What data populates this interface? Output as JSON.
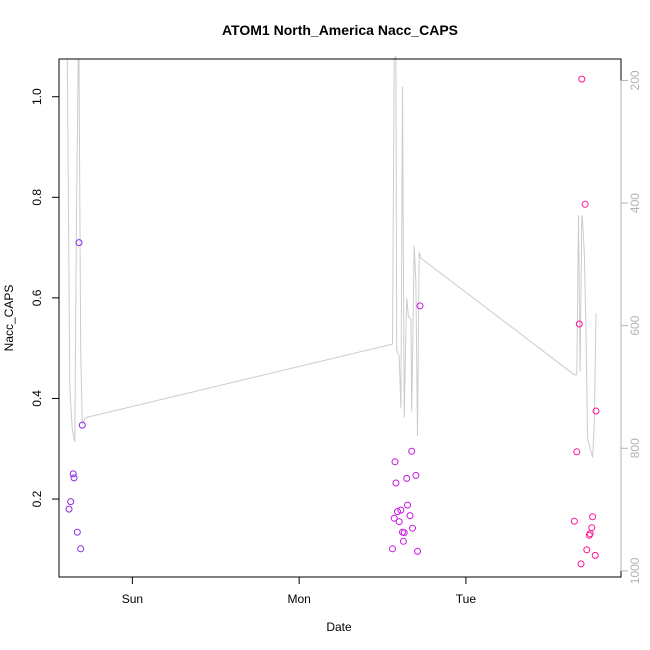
{
  "chart_data": {
    "type": "scatter",
    "title": "ATOM1 North_America Nacc_CAPS",
    "xlabel": "Date",
    "ylabel": "Nacc_CAPS",
    "x_ticks": [
      {
        "label": "Sun",
        "t": 1.0
      },
      {
        "label": "Mon",
        "t": 2.0
      },
      {
        "label": "Tue",
        "t": 3.0
      }
    ],
    "xlim": [
      0.56,
      3.93
    ],
    "ylim": [
      0.045,
      1.075
    ],
    "y_ticks": [
      0.2,
      0.4,
      0.6,
      0.8,
      1.0
    ],
    "y2_ticks": [
      200,
      400,
      600,
      800,
      1000
    ],
    "y2lim": [
      1010,
      165
    ],
    "y2_reversed": true,
    "point_colors": {
      "early": "#8a2be2",
      "mid": "#c71ae0",
      "late": "#ff1493"
    },
    "line_color": "#cccccc",
    "points": [
      {
        "t": 0.62,
        "y": 0.18
      },
      {
        "t": 0.63,
        "y": 0.195
      },
      {
        "t": 0.645,
        "y": 0.25
      },
      {
        "t": 0.65,
        "y": 0.242
      },
      {
        "t": 0.67,
        "y": 0.134
      },
      {
        "t": 0.68,
        "y": 0.71
      },
      {
        "t": 0.69,
        "y": 0.101
      },
      {
        "t": 0.7,
        "y": 0.347
      },
      {
        "t": 2.56,
        "y": 0.101
      },
      {
        "t": 2.57,
        "y": 0.162
      },
      {
        "t": 2.575,
        "y": 0.274
      },
      {
        "t": 2.58,
        "y": 0.232
      },
      {
        "t": 2.59,
        "y": 0.175
      },
      {
        "t": 2.6,
        "y": 0.155
      },
      {
        "t": 2.61,
        "y": 0.178
      },
      {
        "t": 2.62,
        "y": 0.134
      },
      {
        "t": 2.625,
        "y": 0.116
      },
      {
        "t": 2.63,
        "y": 0.133
      },
      {
        "t": 2.645,
        "y": 0.241
      },
      {
        "t": 2.65,
        "y": 0.188
      },
      {
        "t": 2.665,
        "y": 0.167
      },
      {
        "t": 2.675,
        "y": 0.295
      },
      {
        "t": 2.68,
        "y": 0.142
      },
      {
        "t": 2.7,
        "y": 0.247
      },
      {
        "t": 2.71,
        "y": 0.096
      },
      {
        "t": 2.725,
        "y": 0.584
      },
      {
        "t": 3.65,
        "y": 0.156
      },
      {
        "t": 3.665,
        "y": 0.294
      },
      {
        "t": 3.68,
        "y": 0.548
      },
      {
        "t": 3.69,
        "y": 0.071
      },
      {
        "t": 3.695,
        "y": 1.035
      },
      {
        "t": 3.715,
        "y": 0.786
      },
      {
        "t": 3.725,
        "y": 0.099
      },
      {
        "t": 3.74,
        "y": 0.128
      },
      {
        "t": 3.745,
        "y": 0.131
      },
      {
        "t": 3.755,
        "y": 0.143
      },
      {
        "t": 3.76,
        "y": 0.165
      },
      {
        "t": 3.775,
        "y": 0.088
      },
      {
        "t": 3.78,
        "y": 0.375
      }
    ],
    "secondary_line": [
      {
        "t": 0.6,
        "y": 165
      },
      {
        "t": 0.61,
        "y": 165
      },
      {
        "t": 0.625,
        "y": 700
      },
      {
        "t": 0.64,
        "y": 770
      },
      {
        "t": 0.655,
        "y": 790
      },
      {
        "t": 0.665,
        "y": 420
      },
      {
        "t": 0.675,
        "y": 165
      },
      {
        "t": 0.68,
        "y": 165
      },
      {
        "t": 0.69,
        "y": 640
      },
      {
        "t": 0.7,
        "y": 760
      },
      {
        "t": 0.72,
        "y": 750
      },
      {
        "t": 2.56,
        "y": 630
      },
      {
        "t": 2.57,
        "y": 165
      },
      {
        "t": 2.58,
        "y": 160
      },
      {
        "t": 2.585,
        "y": 640
      },
      {
        "t": 2.6,
        "y": 650
      },
      {
        "t": 2.61,
        "y": 735
      },
      {
        "t": 2.62,
        "y": 210
      },
      {
        "t": 2.63,
        "y": 750
      },
      {
        "t": 2.64,
        "y": 610
      },
      {
        "t": 2.645,
        "y": 555
      },
      {
        "t": 2.655,
        "y": 585
      },
      {
        "t": 2.67,
        "y": 590
      },
      {
        "t": 2.675,
        "y": 740
      },
      {
        "t": 2.69,
        "y": 470
      },
      {
        "t": 2.7,
        "y": 530
      },
      {
        "t": 2.71,
        "y": 780
      },
      {
        "t": 2.72,
        "y": 480
      },
      {
        "t": 2.73,
        "y": 490
      },
      {
        "t": 3.65,
        "y": 680
      },
      {
        "t": 3.665,
        "y": 680
      },
      {
        "t": 3.675,
        "y": 420
      },
      {
        "t": 3.685,
        "y": 675
      },
      {
        "t": 3.695,
        "y": 420
      },
      {
        "t": 3.7,
        "y": 430
      },
      {
        "t": 3.71,
        "y": 480
      },
      {
        "t": 3.72,
        "y": 610
      },
      {
        "t": 3.73,
        "y": 785
      },
      {
        "t": 3.745,
        "y": 800
      },
      {
        "t": 3.76,
        "y": 815
      },
      {
        "t": 3.77,
        "y": 760
      },
      {
        "t": 3.78,
        "y": 580
      }
    ]
  }
}
